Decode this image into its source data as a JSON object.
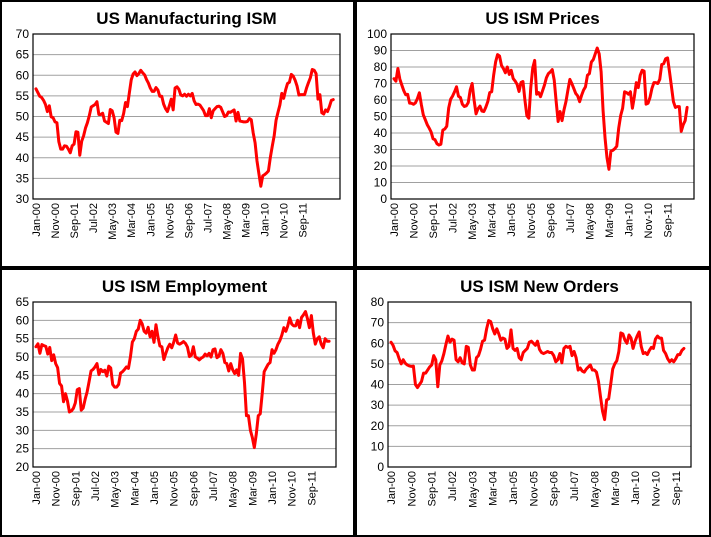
{
  "chart_data": [
    {
      "id": "manufacturing",
      "type": "line",
      "title": "US Manufacturing ISM",
      "xlabel": "",
      "ylabel": "",
      "ylim": [
        30,
        70
      ],
      "yticks": [
        30,
        35,
        40,
        45,
        50,
        55,
        60,
        65,
        70
      ],
      "grid": true,
      "legend": "none",
      "start": "Jan-00",
      "frequency": "monthly",
      "xtick_labels": [
        "Jan-00",
        "Nov-00",
        "Sep-01",
        "Jul-02",
        "May-03",
        "Mar-04",
        "Jan-05",
        "Nov-05",
        "Sep-06",
        "Jul-07",
        "May-08",
        "Mar-09",
        "Jan-10",
        "Nov-10",
        "Sep-11"
      ],
      "series": [
        {
          "name": "US Manufacturing ISM",
          "color": "#ff0000",
          "values": [
            56.7,
            55.8,
            54.9,
            54.6,
            53.9,
            52.9,
            51.2,
            52.6,
            49.9,
            49.7,
            48.7,
            48.5,
            43.9,
            42.1,
            42.1,
            42.9,
            42.8,
            42.1,
            41.2,
            42.9,
            43.3,
            46.3,
            46.2,
            40.6,
            44.0,
            45.3,
            47.2,
            48.5,
            50.2,
            52.3,
            52.6,
            52.9,
            53.6,
            50.5,
            50.5,
            50.8,
            48.9,
            48.6,
            48.3,
            51.7,
            51.4,
            49.7,
            46.2,
            45.9,
            49.1,
            49.0,
            50.7,
            53.4,
            52.4,
            55.7,
            58.9,
            60.3,
            60.8,
            59.9,
            60.4,
            61.2,
            60.6,
            60.1,
            59.0,
            58.1,
            56.9,
            56.1,
            56.1,
            57.0,
            56.4,
            54.9,
            54.9,
            53.0,
            51.9,
            51.2,
            52.6,
            54.2,
            51.6,
            56.9,
            57.2,
            56.6,
            55.2,
            55.0,
            55.4,
            54.9,
            55.4,
            55.0,
            55.6,
            53.8,
            52.9,
            53.0,
            52.8,
            52.1,
            51.4,
            50.2,
            50.2,
            51.9,
            49.7,
            51.4,
            51.9,
            52.4,
            52.5,
            52.2,
            51.1,
            50.0,
            50.2,
            51.1,
            51.0,
            51.3,
            51.6,
            48.9,
            51.0,
            48.9,
            48.8,
            48.7,
            48.7,
            48.8,
            49.5,
            49.2,
            46.0,
            43.6,
            39.2,
            36.1,
            33.1,
            35.6,
            35.9,
            36.3,
            36.8,
            40.1,
            42.8,
            45.3,
            49.1,
            51.0,
            52.8,
            55.6,
            54.4,
            56.4,
            58.0,
            58.3,
            60.2,
            59.8,
            58.8,
            57.4,
            55.2,
            55.3,
            55.3,
            55.3,
            56.9,
            58.2,
            59.4,
            61.4,
            61.2,
            60.4,
            54.2,
            55.3,
            50.9,
            50.6,
            51.6,
            51.2,
            52.4,
            53.9,
            54.1
          ]
        }
      ]
    },
    {
      "id": "prices",
      "type": "line",
      "title": "US ISM Prices",
      "xlabel": "",
      "ylabel": "",
      "ylim": [
        0,
        100
      ],
      "yticks": [
        0,
        10,
        20,
        30,
        40,
        50,
        60,
        70,
        80,
        90,
        100
      ],
      "grid": true,
      "legend": "none",
      "start": "Jan-00",
      "frequency": "monthly",
      "xtick_labels": [
        "Jan-00",
        "Nov-00",
        "Sep-01",
        "Jul-02",
        "May-03",
        "Mar-04",
        "Jan-05",
        "Nov-05",
        "Sep-06",
        "Jul-07",
        "May-08",
        "Mar-09",
        "Jan-10",
        "Nov-10",
        "Sep-11"
      ],
      "series": [
        {
          "name": "US ISM Prices",
          "color": "#ff0000",
          "values": [
            72.9,
            71.4,
            79.1,
            72.7,
            69.1,
            65.7,
            63.2,
            63.4,
            58.1,
            58.0,
            57.4,
            58.3,
            60.9,
            64.4,
            57.2,
            51.0,
            48.1,
            45.1,
            43.0,
            40.6,
            36.5,
            35.9,
            33.5,
            32.7,
            33.2,
            41.8,
            42.4,
            44.1,
            55.2,
            60.5,
            62.4,
            65.0,
            68.0,
            62.3,
            61.5,
            57.4,
            56.1,
            56.5,
            58.4,
            66.0,
            70.0,
            59.9,
            51.6,
            54.7,
            56.3,
            53.3,
            53.0,
            55.7,
            59.0,
            64.5,
            65.0,
            75.0,
            83.0,
            87.5,
            86.7,
            81.0,
            79.0,
            76.5,
            80.0,
            75.5,
            78.0,
            73.0,
            71.5,
            69.5,
            65.2,
            70.6,
            71.2,
            60.0,
            50.5,
            49.0,
            67.5,
            79.4,
            84.0,
            63.5,
            64.5,
            62.0,
            65.5,
            69.0,
            73.5,
            76.0,
            77.0,
            78.4,
            72.0,
            59.0,
            47.0,
            53.0,
            47.5,
            54.0,
            59.0,
            66.0,
            72.5,
            70.0,
            67.0,
            64.0,
            62.5,
            59.0,
            62.8,
            66.0,
            68.0,
            75.0,
            76.0,
            83.0,
            84.5,
            88.0,
            91.5,
            88.0,
            77.0,
            53.5,
            37.0,
            25.0,
            18.0,
            29.0,
            29.5,
            30.5,
            32.0,
            43.0,
            50.5,
            55.0,
            65.0,
            64.5,
            63.5,
            65.0,
            55.0,
            62.0,
            70.5,
            67.5,
            75.0,
            78.0,
            77.5,
            57.5,
            58.0,
            61.5,
            67.0,
            70.5,
            70.5,
            70.0,
            72.5,
            81.5,
            82.0,
            85.0,
            85.5,
            77.0,
            68.0,
            59.0,
            55.5,
            56.0,
            56.0,
            41.0,
            45.0,
            47.5,
            55.5
          ]
        }
      ]
    },
    {
      "id": "employment",
      "type": "line",
      "title": "US ISM Employment",
      "xlabel": "",
      "ylabel": "",
      "ylim": [
        20,
        65
      ],
      "yticks": [
        20,
        25,
        30,
        35,
        40,
        45,
        50,
        55,
        60,
        65
      ],
      "grid": true,
      "legend": "none",
      "start": "Jan-00",
      "frequency": "monthly",
      "xtick_labels": [
        "Jan-00",
        "Nov-00",
        "Sep-01",
        "Jul-02",
        "May-03",
        "Mar-04",
        "Jan-05",
        "Nov-05",
        "Sep-06",
        "Jul-07",
        "May-08",
        "Mar-09",
        "Jan-10",
        "Nov-10",
        "Sep-11"
      ],
      "series": [
        {
          "name": "US ISM Employment",
          "color": "#ff0000",
          "values": [
            52.8,
            53.6,
            51.0,
            53.4,
            53.1,
            52.9,
            50.8,
            52.6,
            49.0,
            50.6,
            48.2,
            47.1,
            42.8,
            42.1,
            37.8,
            40.0,
            38.0,
            35.0,
            35.3,
            36.0,
            37.5,
            41.1,
            41.4,
            35.5,
            36.1,
            38.5,
            40.5,
            43.3,
            46.2,
            46.6,
            47.3,
            48.2,
            45.2,
            46.6,
            46.0,
            46.4,
            44.8,
            47.5,
            47.0,
            42.5,
            41.8,
            41.8,
            42.5,
            45.6,
            46.0,
            46.6,
            47.3,
            46.9,
            50.0,
            54.1,
            55.0,
            57.0,
            57.6,
            60.0,
            59.0,
            57.0,
            56.5,
            58.1,
            55.5,
            57.0,
            54.0,
            58.8,
            55.5,
            53.0,
            52.8,
            49.3,
            51.0,
            52.5,
            53.5,
            52.5,
            54.0,
            56.0,
            53.8,
            53.5,
            53.8,
            54.2,
            53.7,
            52.7,
            50.1,
            50.5,
            52.8,
            50.0,
            49.7,
            49.2,
            49.7,
            50.0,
            50.8,
            50.3,
            51.0,
            50.0,
            52.0,
            52.2,
            49.8,
            50.2,
            52.0,
            51.0,
            48.5,
            48.2,
            46.2,
            48.2,
            46.5,
            45.5,
            46.5,
            45.0,
            51.0,
            49.5,
            43.0,
            34.0,
            34.0,
            30.0,
            28.0,
            25.3,
            29.0,
            34.0,
            34.5,
            40.0,
            46.0,
            47.0,
            48.0,
            48.5,
            52.0,
            51.0,
            52.0,
            53.5,
            54.5,
            56.0,
            58.0,
            57.0,
            58.5,
            60.7,
            59.0,
            58.5,
            58.5,
            60.0,
            58.0,
            60.8,
            61.5,
            62.4,
            60.5,
            58.0,
            61.3,
            56.5,
            53.5,
            55.0,
            55.5,
            53.5,
            52.5,
            55.0,
            54.3,
            54.3
          ]
        }
      ]
    },
    {
      "id": "new_orders",
      "type": "line",
      "title": "US ISM New Orders",
      "xlabel": "",
      "ylabel": "",
      "ylim": [
        0,
        80
      ],
      "yticks": [
        0,
        10,
        20,
        30,
        40,
        50,
        60,
        70,
        80
      ],
      "grid": true,
      "legend": "none",
      "start": "Jan-00",
      "frequency": "monthly",
      "xtick_labels": [
        "Jan-00",
        "Nov-00",
        "Sep-01",
        "Jul-02",
        "May-03",
        "Mar-04",
        "Jan-05",
        "Nov-05",
        "Sep-06",
        "Jul-07",
        "May-08",
        "Mar-09",
        "Jan-10",
        "Nov-10",
        "Sep-11"
      ],
      "series": [
        {
          "name": "US ISM New Orders",
          "color": "#ff0000",
          "values": [
            60.5,
            59.0,
            56.3,
            55.5,
            52.5,
            50.0,
            52.0,
            50.3,
            49.5,
            49.0,
            48.8,
            48.9,
            40.0,
            38.5,
            40.0,
            41.5,
            45.5,
            45.5,
            47.0,
            48.5,
            49.5,
            54.0,
            52.0,
            38.9,
            49.5,
            51.5,
            55.0,
            59.5,
            63.5,
            60.5,
            62.0,
            61.5,
            52.0,
            51.0,
            53.0,
            50.5,
            50.0,
            58.5,
            58.0,
            49.5,
            47.0,
            47.0,
            53.0,
            54.0,
            57.0,
            61.0,
            61.5,
            67.0,
            71.0,
            70.5,
            67.0,
            64.5,
            67.0,
            64.5,
            61.5,
            62.5,
            62.0,
            57.5,
            58.5,
            66.5,
            57.5,
            56.5,
            57.5,
            53.0,
            52.0,
            55.5,
            56.5,
            57.5,
            60.5,
            61.0,
            60.0,
            59.0,
            61.0,
            57.0,
            55.5,
            55.0,
            55.5,
            56.0,
            55.5,
            55.5,
            54.0,
            51.0,
            52.0,
            55.0,
            50.5,
            57.5,
            58.5,
            58.0,
            58.5,
            54.0,
            56.0,
            53.0,
            47.0,
            48.0,
            46.5,
            46.0,
            47.5,
            48.5,
            49.5,
            47.0,
            47.0,
            46.0,
            41.5,
            34.0,
            27.0,
            23.0,
            32.5,
            33.0,
            40.0,
            47.5,
            50.0,
            51.5,
            56.0,
            65.0,
            64.5,
            61.5,
            60.0,
            64.0,
            62.5,
            57.5,
            61.0,
            63.5,
            65.5,
            58.5,
            55.0,
            55.5,
            54.5,
            56.5,
            58.0,
            57.5,
            62.0,
            63.5,
            62.5,
            62.5,
            56.5,
            55.0,
            52.5,
            51.0,
            52.0,
            51.0,
            52.5,
            54.5,
            54.5,
            56.5,
            57.5
          ]
        }
      ]
    }
  ]
}
